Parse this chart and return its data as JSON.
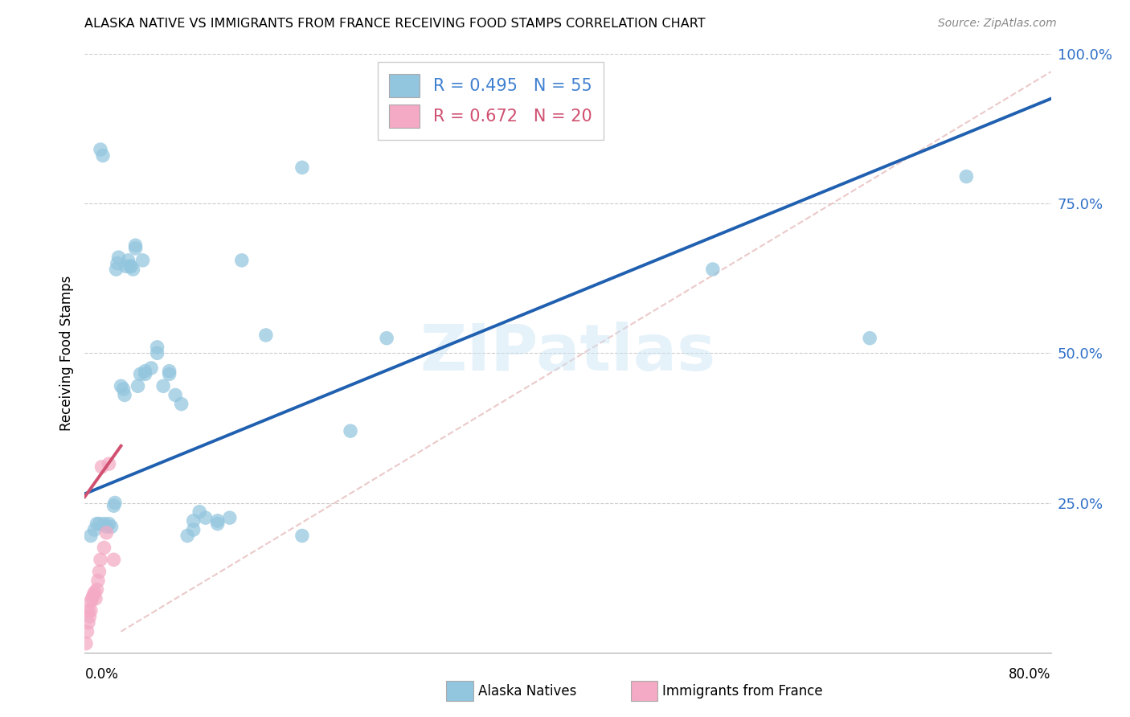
{
  "title": "ALASKA NATIVE VS IMMIGRANTS FROM FRANCE RECEIVING FOOD STAMPS CORRELATION CHART",
  "source": "Source: ZipAtlas.com",
  "ylabel": "Receiving Food Stamps",
  "color_blue": "#92c5de",
  "color_pink": "#f4a9c4",
  "line_color_blue": "#2060b0",
  "line_color_pink": "#d05070",
  "line_color_diag": "#e8c0c0",
  "watermark_text": "ZIPatlas",
  "blue_r": "0.495",
  "blue_n": "55",
  "pink_r": "0.672",
  "pink_n": "20",
  "legend_text_color_blue": "#4080d0",
  "legend_text_color_pink": "#d05070",
  "blue_line": [
    0.0,
    0.265,
    0.8,
    0.925
  ],
  "pink_line": [
    0.0,
    0.26,
    0.03,
    0.345
  ],
  "diag_line": [
    0.03,
    0.035,
    0.8,
    0.97
  ],
  "blue_x": [
    0.005,
    0.01,
    0.013,
    0.016,
    0.018,
    0.02,
    0.022,
    0.024,
    0.026,
    0.028,
    0.03,
    0.032,
    0.034,
    0.036,
    0.038,
    0.04,
    0.042,
    0.044,
    0.046,
    0.048,
    0.05,
    0.055,
    0.06,
    0.065,
    0.07,
    0.075,
    0.08,
    0.085,
    0.09,
    0.095,
    0.1,
    0.11,
    0.12,
    0.13,
    0.15,
    0.18,
    0.22,
    0.25,
    0.52,
    0.65,
    0.73,
    0.008,
    0.012,
    0.015,
    0.025,
    0.027,
    0.033,
    0.038,
    0.042,
    0.05,
    0.06,
    0.07,
    0.09,
    0.11,
    0.18
  ],
  "blue_y": [
    0.195,
    0.215,
    0.84,
    0.215,
    0.21,
    0.215,
    0.21,
    0.245,
    0.64,
    0.66,
    0.445,
    0.44,
    0.645,
    0.655,
    0.645,
    0.64,
    0.68,
    0.445,
    0.465,
    0.655,
    0.47,
    0.475,
    0.51,
    0.445,
    0.465,
    0.43,
    0.415,
    0.195,
    0.205,
    0.235,
    0.225,
    0.215,
    0.225,
    0.655,
    0.53,
    0.81,
    0.37,
    0.525,
    0.64,
    0.525,
    0.795,
    0.205,
    0.215,
    0.83,
    0.25,
    0.65,
    0.43,
    0.645,
    0.675,
    0.465,
    0.5,
    0.47,
    0.22,
    0.22,
    0.195
  ],
  "pink_x": [
    0.001,
    0.002,
    0.003,
    0.003,
    0.004,
    0.005,
    0.005,
    0.006,
    0.007,
    0.008,
    0.009,
    0.01,
    0.011,
    0.012,
    0.013,
    0.014,
    0.016,
    0.018,
    0.02,
    0.024
  ],
  "pink_y": [
    0.015,
    0.035,
    0.05,
    0.07,
    0.06,
    0.07,
    0.085,
    0.09,
    0.095,
    0.1,
    0.09,
    0.105,
    0.12,
    0.135,
    0.155,
    0.31,
    0.175,
    0.2,
    0.315,
    0.155
  ],
  "xlim": [
    0.0,
    0.8
  ],
  "ylim": [
    0.0,
    1.0
  ],
  "yticks": [
    0.0,
    0.25,
    0.5,
    0.75,
    1.0
  ],
  "ytick_labels": [
    "",
    "25.0%",
    "50.0%",
    "75.0%",
    "100.0%"
  ]
}
